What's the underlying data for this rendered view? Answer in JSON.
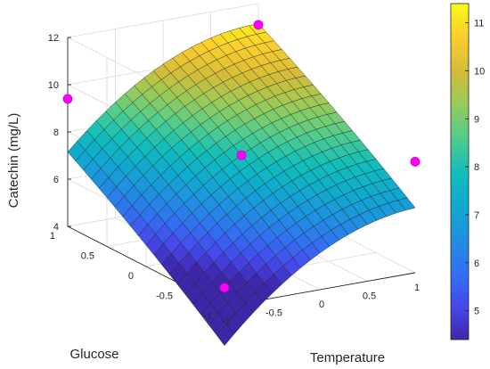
{
  "chart_data": {
    "type": "surface",
    "xlabel": "Temperature",
    "ylabel": "Glucose",
    "zlabel": "Catechin (mg/L)",
    "xlim": [
      -1,
      1
    ],
    "ylim": [
      -1,
      1
    ],
    "zlim": [
      4,
      12
    ],
    "x_ticks": [
      -1,
      -0.5,
      0,
      0.5,
      1
    ],
    "y_ticks": [
      -1,
      -0.5,
      0,
      0.5,
      1
    ],
    "z_ticks": [
      4,
      6,
      8,
      10,
      12
    ],
    "x_tick_labels": [
      "-1",
      "-0.5",
      "0",
      "0.5",
      "1"
    ],
    "y_tick_labels": [
      "-1",
      "-0.5",
      "0",
      "0.5",
      "1"
    ],
    "z_tick_labels": [
      "4",
      "6",
      "8",
      "10",
      "12"
    ],
    "colormap": "parula",
    "colorbar": {
      "range": [
        4.4,
        11.4
      ],
      "ticks": [
        5,
        6,
        7,
        8,
        9,
        10,
        11
      ],
      "tick_labels": [
        "5",
        "6",
        "7",
        "8",
        "9",
        "10",
        "11"
      ]
    },
    "grid": true,
    "model": "z = 8.0 + 2.1*T + 2.3*G - 1.0*T^2 - 0.15*G^2 - 0.1*T*G",
    "surface_grid_size": 20,
    "points": [
      {
        "temperature": -1,
        "glucose": -1,
        "catechin": 4.8
      },
      {
        "temperature": 1,
        "glucose": -1,
        "catechin": 8.7
      },
      {
        "temperature": 0,
        "glucose": 0,
        "catechin": 8.0
      },
      {
        "temperature": -1,
        "glucose": 1,
        "catechin": 9.4
      },
      {
        "temperature": 1,
        "glucose": 1,
        "catechin": 11.1
      }
    ],
    "point_color": "#ff00ff"
  }
}
